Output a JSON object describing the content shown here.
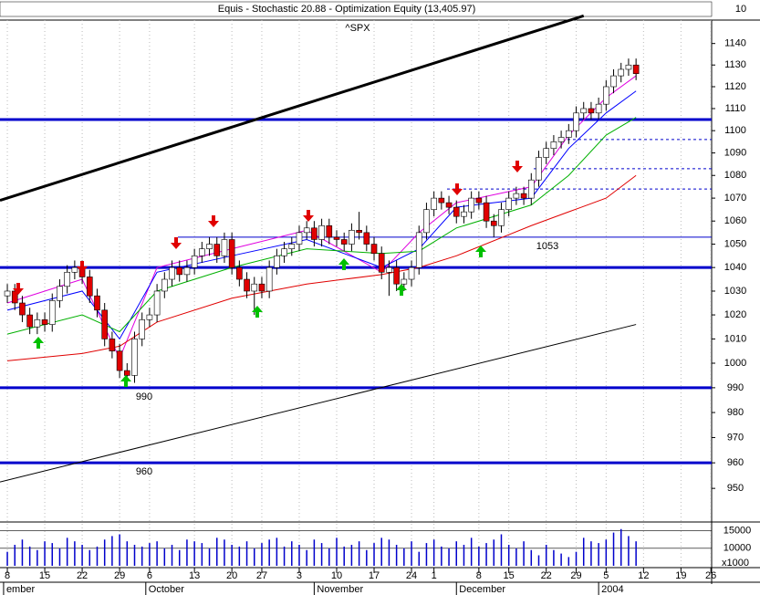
{
  "chart_data": {
    "type": "candlestick",
    "title": "Equis - Stochastic 20.88 - Optimization Equity (13,405.97)",
    "top_value": "10",
    "subtitle": "^SPX",
    "log_scale": true,
    "xlim": [
      -0.98,
      94.1
    ],
    "ylim": [
      937,
      1151
    ],
    "yticks": [
      950,
      960,
      970,
      980,
      990,
      1000,
      1010,
      1020,
      1030,
      1040,
      1050,
      1060,
      1070,
      1080,
      1090,
      1100,
      1110,
      1120,
      1130,
      1140
    ],
    "xticks": [
      {
        "value": 0,
        "label": "8"
      },
      {
        "value": 5,
        "label": "15"
      },
      {
        "value": 10,
        "label": "22"
      },
      {
        "value": 15,
        "label": "29"
      },
      {
        "value": 19,
        "label": "6"
      },
      {
        "value": 25,
        "label": "13"
      },
      {
        "value": 30,
        "label": "20"
      },
      {
        "value": 34,
        "label": "27"
      },
      {
        "value": 39,
        "label": "3"
      },
      {
        "value": 44,
        "label": "10"
      },
      {
        "value": 49,
        "label": "17"
      },
      {
        "value": 54,
        "label": "24"
      },
      {
        "value": 57,
        "label": "1"
      },
      {
        "value": 63,
        "label": "8"
      },
      {
        "value": 67,
        "label": "15"
      },
      {
        "value": 72,
        "label": "22"
      },
      {
        "value": 76,
        "label": "29"
      },
      {
        "value": 80,
        "label": "5"
      },
      {
        "value": 85,
        "label": "12"
      },
      {
        "value": 90,
        "label": "19"
      },
      {
        "value": 94,
        "label": "26"
      }
    ],
    "month_ticks": [
      {
        "value": -0.5,
        "label": "ember"
      },
      {
        "value": 18.5,
        "label": "October"
      },
      {
        "value": 41,
        "label": "November"
      },
      {
        "value": 60,
        "label": "December"
      },
      {
        "value": 79,
        "label": "2004"
      }
    ],
    "up_color": "#ffffff",
    "down_color": "#e00000",
    "open": [
      1028,
      1030,
      1025,
      1020,
      1015,
      1018,
      1016,
      1026,
      1032,
      1038,
      1040,
      1036,
      1028,
      1022,
      1010,
      1005,
      997,
      995,
      1010,
      1018,
      1020,
      1030,
      1035,
      1040,
      1037,
      1040,
      1045,
      1048,
      1050,
      1045,
      1052,
      1040,
      1035,
      1030,
      1033,
      1030,
      1040,
      1045,
      1048,
      1050,
      1055,
      1057,
      1052,
      1058,
      1053,
      1052,
      1050,
      1056,
      1055,
      1050,
      1046,
      1038,
      1040,
      1033,
      1035,
      1040,
      1055,
      1065,
      1070,
      1068,
      1066,
      1062,
      1064,
      1070,
      1068,
      1060,
      1058,
      1065,
      1070,
      1072,
      1070,
      1078,
      1088,
      1092,
      1095,
      1097,
      1100,
      1108,
      1110,
      1108,
      1112,
      1120,
      1125,
      1128,
      1130
    ],
    "high": [
      1033,
      1033,
      1028,
      1023,
      1021,
      1021,
      1029,
      1035,
      1041,
      1043,
      1043,
      1039,
      1031,
      1025,
      1013,
      1008,
      1000,
      1013,
      1021,
      1023,
      1033,
      1038,
      1043,
      1043,
      1043,
      1048,
      1051,
      1053,
      1053,
      1055,
      1055,
      1043,
      1038,
      1036,
      1036,
      1043,
      1048,
      1051,
      1053,
      1058,
      1060,
      1060,
      1061,
      1061,
      1056,
      1055,
      1059,
      1064,
      1058,
      1053,
      1049,
      1043,
      1043,
      1038,
      1043,
      1058,
      1068,
      1073,
      1073,
      1071,
      1069,
      1067,
      1073,
      1073,
      1071,
      1063,
      1068,
      1073,
      1075,
      1075,
      1081,
      1091,
      1095,
      1098,
      1100,
      1103,
      1111,
      1113,
      1113,
      1115,
      1123,
      1128,
      1131,
      1133,
      1133
    ],
    "low": [
      1025,
      1022,
      1017,
      1012,
      1012,
      1013,
      1013,
      1023,
      1029,
      1035,
      1033,
      1025,
      1019,
      1007,
      1002,
      994,
      992,
      992,
      1007,
      1015,
      1017,
      1027,
      1032,
      1034,
      1034,
      1037,
      1042,
      1045,
      1042,
      1042,
      1037,
      1032,
      1027,
      1020,
      1027,
      1027,
      1037,
      1042,
      1045,
      1047,
      1052,
      1049,
      1049,
      1050,
      1049,
      1047,
      1047,
      1052,
      1047,
      1043,
      1035,
      1028,
      1030,
      1030,
      1032,
      1037,
      1052,
      1062,
      1065,
      1063,
      1059,
      1059,
      1061,
      1065,
      1057,
      1053,
      1055,
      1062,
      1067,
      1067,
      1067,
      1075,
      1085,
      1089,
      1092,
      1094,
      1097,
      1105,
      1105,
      1105,
      1109,
      1117,
      1122,
      1125,
      1123
    ],
    "close": [
      1030,
      1025,
      1020,
      1015,
      1018,
      1016,
      1026,
      1032,
      1038,
      1040,
      1036,
      1028,
      1022,
      1010,
      1005,
      997,
      995,
      1010,
      1018,
      1020,
      1030,
      1035,
      1040,
      1037,
      1040,
      1045,
      1048,
      1050,
      1045,
      1052,
      1040,
      1035,
      1030,
      1033,
      1030,
      1040,
      1045,
      1048,
      1050,
      1055,
      1057,
      1052,
      1058,
      1053,
      1052,
      1050,
      1056,
      1055,
      1050,
      1046,
      1038,
      1040,
      1033,
      1035,
      1040,
      1055,
      1065,
      1070,
      1068,
      1066,
      1062,
      1064,
      1070,
      1068,
      1060,
      1058,
      1065,
      1070,
      1072,
      1070,
      1078,
      1088,
      1092,
      1095,
      1097,
      1100,
      1108,
      1110,
      1108,
      1112,
      1120,
      1125,
      1128,
      1130,
      1126
    ],
    "ma_x": [
      0,
      10,
      15,
      20,
      30,
      40,
      50,
      55,
      60,
      70,
      75,
      80,
      84
    ],
    "series": [
      {
        "color": "#e000e0",
        "values": [
          1025,
          1035,
          1002,
          1040,
          1048,
          1056,
          1038,
          1055,
          1068,
          1075,
          1098,
          1115,
          1125
        ]
      },
      {
        "color": "#0000ff",
        "values": [
          1022,
          1030,
          1010,
          1038,
          1045,
          1052,
          1040,
          1048,
          1066,
          1070,
          1092,
          1108,
          1118
        ]
      },
      {
        "color": "#00b000",
        "values": [
          1012,
          1020,
          1013,
          1030,
          1040,
          1048,
          1046,
          1047,
          1057,
          1067,
          1080,
          1098,
          1106
        ]
      },
      {
        "color": "#e00000",
        "values": [
          1001,
          1004,
          1007,
          1017,
          1027,
          1033,
          1037,
          1040,
          1045,
          1058,
          1064,
          1070,
          1080
        ]
      }
    ],
    "trendlines": [
      {
        "x": [
          -0.98,
          77
        ],
        "y": [
          1069,
          1153
        ],
        "width": 3
      },
      {
        "x": [
          -0.98,
          84
        ],
        "y": [
          952.5,
          1016
        ],
        "width": 1
      }
    ],
    "thick_lines": [
      1105,
      1040,
      990,
      960
    ],
    "thin_lines": [
      1053
    ],
    "dashed_lines": [
      1096,
      1083,
      1074
    ],
    "line_color": "#0000cc",
    "volume": [
      9000,
      11000,
      12500,
      10500,
      9500,
      12000,
      11500,
      10000,
      13000,
      12000,
      11000,
      9500,
      10500,
      12500,
      13500,
      14000,
      12000,
      11000,
      10500,
      11500,
      12000,
      10000,
      11000,
      9500,
      12500,
      12000,
      11500,
      10000,
      13000,
      12500,
      11000,
      10500,
      12000,
      10000,
      11500,
      12500,
      13000,
      10500,
      12000,
      11000,
      9500,
      12500,
      11500,
      10000,
      13000,
      10500,
      11000,
      12000,
      9500,
      11500,
      13000,
      12500,
      11000,
      10000,
      12000,
      9000,
      11500,
      12500,
      10500,
      10000,
      12000,
      11000,
      13000,
      10500,
      11500,
      12500,
      14000,
      11000,
      10000,
      12000,
      9500,
      8000,
      11000,
      9500,
      8500,
      7500,
      9000,
      13000,
      12000,
      11500,
      12500,
      14500,
      15500,
      13500,
      12000
    ],
    "volume_ylim": [
      5000,
      17000
    ],
    "volume_yticks": [
      15000,
      10000
    ],
    "volume_unit": "x1000"
  }
}
